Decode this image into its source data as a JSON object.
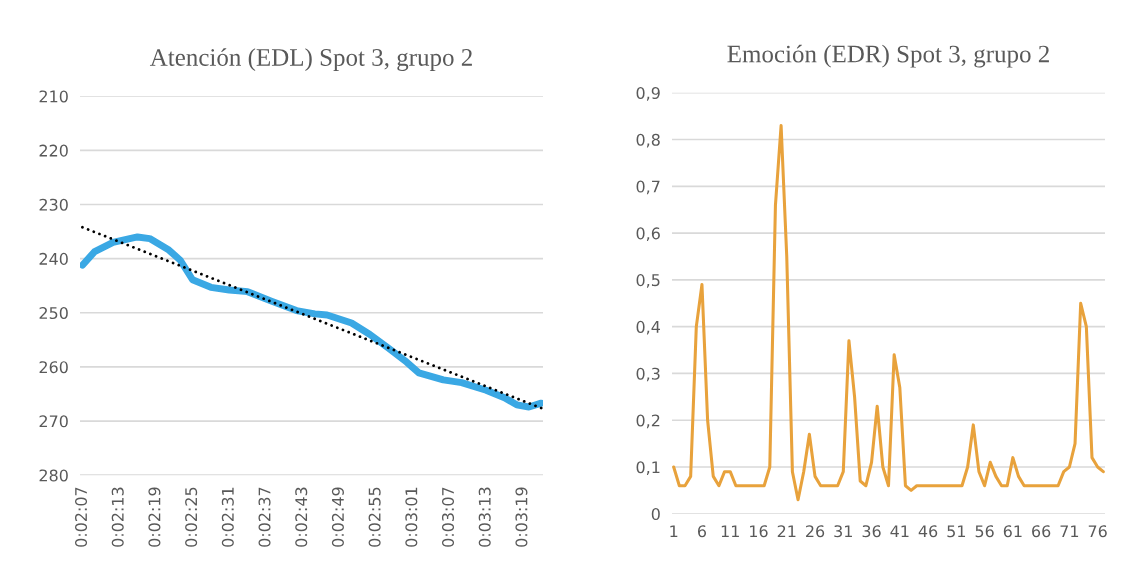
{
  "chart_data": [
    {
      "type": "line",
      "title": "Atención (EDL) Spot 3, grupo 2",
      "x": [
        0.035278,
        0.035833,
        0.036667,
        0.037778,
        0.038333,
        0.039167,
        0.039722,
        0.040278,
        0.041111,
        0.041944,
        0.042778,
        0.043889,
        0.045,
        0.045833,
        0.046389,
        0.0475,
        0.048333,
        0.049167,
        0.05,
        0.050556,
        0.051667,
        0.0525,
        0.053611,
        0.054444,
        0.055,
        0.055556,
        0.056111
      ],
      "series": [
        {
          "color": "#3aa8e4",
          "values": [
            241.2,
            238.7,
            237.0,
            236.0,
            236.3,
            238.3,
            240.3,
            243.9,
            245.3,
            245.8,
            246.1,
            247.9,
            249.6,
            250.2,
            250.4,
            251.9,
            254.0,
            256.5,
            259.1,
            261.1,
            262.4,
            262.9,
            264.3,
            265.7,
            267.0,
            267.4,
            266.7
          ]
        },
        {
          "type": "line",
          "color": "#000000",
          "line_style": "dotted",
          "x": [
            0.035278,
            0.056111
          ],
          "values": [
            234.2,
            267.6
          ]
        }
      ],
      "xlim": [
        0.035167,
        0.056194
      ],
      "xticks": [
        {
          "value": 0.035278,
          "label": "0:02:07"
        },
        {
          "value": 0.036944,
          "label": "0:02:13"
        },
        {
          "value": 0.038611,
          "label": "0:02:19"
        },
        {
          "value": 0.040278,
          "label": "0:02:25"
        },
        {
          "value": 0.041944,
          "label": "0:02:31"
        },
        {
          "value": 0.043611,
          "label": "0:02:37"
        },
        {
          "value": 0.045278,
          "label": "0:02:43"
        },
        {
          "value": 0.046944,
          "label": "0:02:49"
        },
        {
          "value": 0.048611,
          "label": "0:02:55"
        },
        {
          "value": 0.050278,
          "label": "0:03:01"
        },
        {
          "value": 0.051944,
          "label": "0:03:07"
        },
        {
          "value": 0.053611,
          "label": "0:03:13"
        },
        {
          "value": 0.055278,
          "label": "0:03:19"
        }
      ],
      "ylim": [
        280,
        210
      ],
      "yticks": [
        210,
        220,
        230,
        240,
        250,
        260,
        270,
        280
      ],
      "grid": "y",
      "legend": false
    },
    {
      "type": "line",
      "title": "Emoción (EDR) Spot 3, grupo 2",
      "categories": [
        "1",
        null,
        null,
        null,
        null,
        "6",
        null,
        null,
        null,
        null,
        "11",
        null,
        null,
        null,
        null,
        "16",
        null,
        null,
        null,
        null,
        "21",
        null,
        null,
        null,
        null,
        "26",
        null,
        null,
        null,
        null,
        "31",
        null,
        null,
        null,
        null,
        "36",
        null,
        null,
        null,
        null,
        "41",
        null,
        null,
        null,
        null,
        "46",
        null,
        null,
        null,
        null,
        "51",
        null,
        null,
        null,
        null,
        "56",
        null,
        null,
        null,
        null,
        "61",
        null,
        null,
        null,
        null,
        "66",
        null,
        null,
        null,
        null,
        "71",
        null,
        null,
        null,
        null,
        "76",
        null
      ],
      "series": [
        {
          "color": "#e8a23c",
          "values": [
            0.1,
            0.06,
            0.06,
            0.08,
            0.4,
            0.49,
            0.2,
            0.08,
            0.06,
            0.09,
            0.09,
            0.06,
            0.06,
            0.06,
            0.06,
            0.06,
            0.06,
            0.1,
            0.66,
            0.83,
            0.55,
            0.09,
            0.03,
            0.09,
            0.17,
            0.08,
            0.06,
            0.06,
            0.06,
            0.06,
            0.09,
            0.37,
            0.25,
            0.07,
            0.06,
            0.11,
            0.23,
            0.1,
            0.06,
            0.34,
            0.27,
            0.06,
            0.05,
            0.06,
            0.06,
            0.06,
            0.06,
            0.06,
            0.06,
            0.06,
            0.06,
            0.06,
            0.1,
            0.19,
            0.09,
            0.06,
            0.11,
            0.08,
            0.06,
            0.06,
            0.12,
            0.08,
            0.06,
            0.06,
            0.06,
            0.06,
            0.06,
            0.06,
            0.06,
            0.09,
            0.1,
            0.15,
            0.45,
            0.4,
            0.12,
            0.1,
            0.09
          ]
        }
      ],
      "ylim": [
        0,
        0.9
      ],
      "yticks": [
        {
          "value": 0,
          "label": "0"
        },
        {
          "value": 0.1,
          "label": "0,1"
        },
        {
          "value": 0.2,
          "label": "0,2"
        },
        {
          "value": 0.3,
          "label": "0,3"
        },
        {
          "value": 0.4,
          "label": "0,4"
        },
        {
          "value": 0.5,
          "label": "0,5"
        },
        {
          "value": 0.6,
          "label": "0,6"
        },
        {
          "value": 0.7,
          "label": "0,7"
        },
        {
          "value": 0.8,
          "label": "0,8"
        },
        {
          "value": 0.9,
          "label": "0,9"
        }
      ],
      "grid": "y",
      "legend": false
    }
  ]
}
